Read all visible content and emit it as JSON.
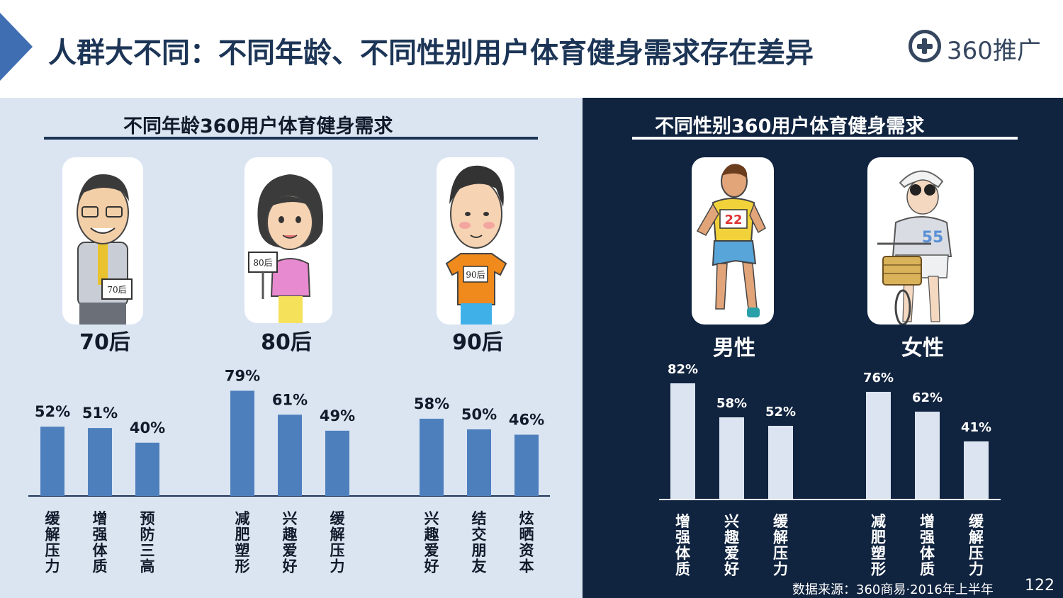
{
  "header": {
    "title": "人群大不同：不同年龄、不同性别用户体育健身需求存在差异",
    "logo_text": "360推广"
  },
  "age_section": {
    "title": "不同年龄360用户体育健身需求"
  },
  "gender_section": {
    "title": "不同性别360用户体育健身需求"
  },
  "footer": {
    "source": "数据来源：360商易·2016年上半年",
    "page_number": "122"
  },
  "colors": {
    "left_bar": "#4e7fbd",
    "right_bar": "#dce4f1",
    "left_bg": "#dbe5f2",
    "right_bg": "#10233f",
    "title": "#1c3556"
  },
  "chart_data": [
    {
      "type": "bar",
      "title": "不同年龄360用户体育健身需求",
      "groups": [
        {
          "name": "70后",
          "badge": "70后",
          "categories": [
            "缓解压力",
            "增强体质",
            "预防三高"
          ],
          "values": [
            52,
            51,
            40
          ]
        },
        {
          "name": "80后",
          "badge": "80后",
          "categories": [
            "减肥塑形",
            "兴趣爱好",
            "缓解压力"
          ],
          "values": [
            79,
            61,
            49
          ]
        },
        {
          "name": "90后",
          "badge": "90后",
          "categories": [
            "兴趣爱好",
            "结交朋友",
            "炫晒资本"
          ],
          "values": [
            58,
            50,
            46
          ]
        }
      ],
      "unit": "%",
      "ylim": [
        0,
        100
      ],
      "grid": false,
      "legend": "none"
    },
    {
      "type": "bar",
      "title": "不同性别360用户体育健身需求",
      "groups": [
        {
          "name": "男性",
          "badge": "22",
          "categories": [
            "增强体质",
            "兴趣爱好",
            "缓解压力"
          ],
          "values": [
            82,
            58,
            52
          ]
        },
        {
          "name": "女性",
          "badge": "55",
          "categories": [
            "减肥塑形",
            "增强体质",
            "缓解压力"
          ],
          "values": [
            76,
            62,
            41
          ]
        }
      ],
      "unit": "%",
      "ylim": [
        0,
        100
      ],
      "grid": false,
      "legend": "none"
    }
  ]
}
